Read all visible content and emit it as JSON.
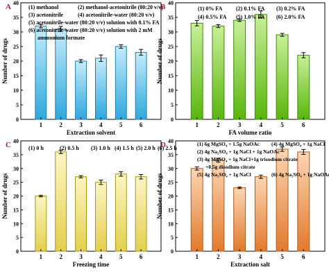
{
  "colors": {
    "A": {
      "top": "#c6ecfb",
      "bottom": "#2fa8dc",
      "stroke": "#1c7fae"
    },
    "B": {
      "top": "#caef9a",
      "bottom": "#58b60c",
      "stroke": "#3a8a06"
    },
    "C": {
      "top": "#fbf6c4",
      "bottom": "#e3cf4e",
      "stroke": "#a79414"
    },
    "D": {
      "top": "#fbd6b4",
      "bottom": "#e27a2c",
      "stroke": "#b4561a"
    },
    "panel_label": "#a11f33",
    "error_bar": "#000000"
  },
  "chart_data": [
    {
      "panel": "A",
      "type": "bar",
      "categories": [
        "1",
        "2",
        "3",
        "4",
        "5",
        "6"
      ],
      "values": [
        32,
        31,
        20,
        21,
        25,
        23
      ],
      "errors": [
        0.6,
        0.9,
        0.5,
        1.1,
        0.6,
        1.0
      ],
      "xlabel": "Extraction solvent",
      "ylabel": "Number of drugs",
      "ylim": [
        0,
        40
      ],
      "yticks": [
        0,
        5,
        10,
        15,
        20,
        25,
        30,
        35,
        40
      ],
      "legend": [
        "(1) methanol",
        "(2) methanol-acetonitrile (80:20 v/v)",
        "(3) acetonitrile",
        "(4) acetonitrile-water (80:20 v/v)",
        "(5) acetonitrile-water (80:20 v/v) solution with 0.1% FA",
        "(6) acetonitrile-water (80:20 v/v) solution with 2 mM",
        "ammonium formate"
      ]
    },
    {
      "panel": "B",
      "type": "bar",
      "categories": [
        "1",
        "2",
        "3",
        "4",
        "5",
        "6"
      ],
      "values": [
        33,
        32,
        34,
        36,
        29,
        22
      ],
      "errors": [
        0.9,
        0.5,
        0.4,
        1.2,
        0.5,
        0.9
      ],
      "xlabel": "FA volume ratio",
      "ylabel": "Number of drugs",
      "ylim": [
        0,
        40
      ],
      "yticks": [
        0,
        5,
        10,
        15,
        20,
        25,
        30,
        35,
        40
      ],
      "legend": [
        "(1) 0% FA",
        "(2) 0.1% FA",
        "(3) 0.2% FA",
        "(4) 0.5% FA",
        "(5) 1.0% FA",
        "(6) 2.0% FA"
      ]
    },
    {
      "panel": "C",
      "type": "bar",
      "categories": [
        "1",
        "2",
        "3",
        "4",
        "5",
        "6"
      ],
      "values": [
        20,
        36,
        27,
        25,
        28,
        27
      ],
      "errors": [
        0.3,
        0.6,
        0.4,
        0.8,
        0.8,
        0.8
      ],
      "xlabel": "Freezing time",
      "ylabel": "Number of drugs",
      "ylim": [
        0,
        40
      ],
      "yticks": [
        0,
        5,
        10,
        15,
        20,
        25,
        30,
        35,
        40
      ],
      "legend": [
        "(1) 0 h",
        "(2) 0.5 h",
        "(3) 1.0 h",
        "(4) 1.5 h",
        "(5) 2.0 h",
        "(6) 2.5 h"
      ]
    },
    {
      "panel": "D",
      "type": "bar",
      "categories": [
        "1",
        "2",
        "3",
        "4",
        "5",
        "6"
      ],
      "values": [
        30,
        33,
        23,
        27,
        37,
        36
      ],
      "errors": [
        0.6,
        0.7,
        0.3,
        0.6,
        0.8,
        0.9
      ],
      "xlabel": "Extraction salt",
      "ylabel": "Number of drugs",
      "ylim": [
        0,
        40
      ],
      "yticks": [
        0,
        5,
        10,
        15,
        20,
        25,
        30,
        35,
        40
      ],
      "legend": [
        "(1) 6g MgSO₄ + 1.5g NaOAc",
        "(4) 4g MgSO₄ + 1g NaCl",
        "(2) 4g Na₂SO₄ + 1g NaCl + 1g NaOAc",
        "(3) 4g MgSO₄ + 1g NaCl+1g trisodium citrate",
        "+0.5g disodium citrate",
        "(5) 4g Na₂SO₄ + 1g NaCl",
        "(6) 4g Na₂SO₄ + 1g NaOAc"
      ]
    }
  ]
}
